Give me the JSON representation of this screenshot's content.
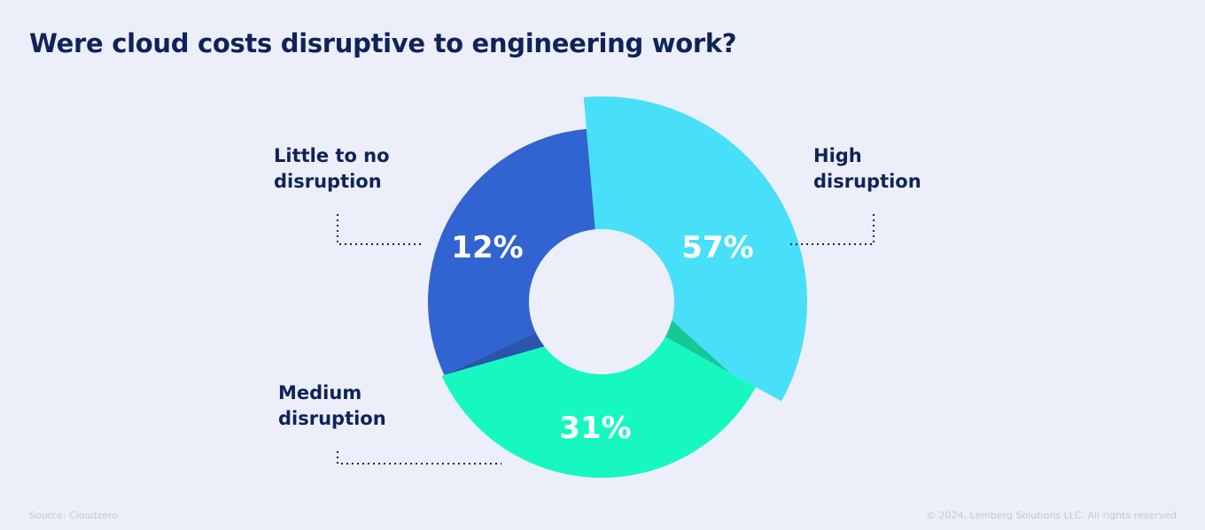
{
  "chart_data": {
    "type": "pie",
    "title": "Were cloud costs disruptive to engineering work?",
    "categories": [
      "High disruption",
      "Medium disruption",
      "Little to no disruption"
    ],
    "values": [
      57,
      31,
      12
    ],
    "value_labels": [
      "57%",
      "31%",
      "12%"
    ],
    "colors": [
      "#47e0f8",
      "#17f8c0",
      "#3163d1"
    ],
    "donut": true,
    "legend": "callout labels"
  },
  "labels": {
    "high": [
      "High",
      "disruption"
    ],
    "medium": [
      "Medium",
      "disruption"
    ],
    "little": [
      "Little to no",
      "disruption"
    ]
  },
  "footer": {
    "source": "Source: Cloudzero",
    "copyright": "© 2024, Lemberg Solutions LLC. All rights reserved"
  }
}
